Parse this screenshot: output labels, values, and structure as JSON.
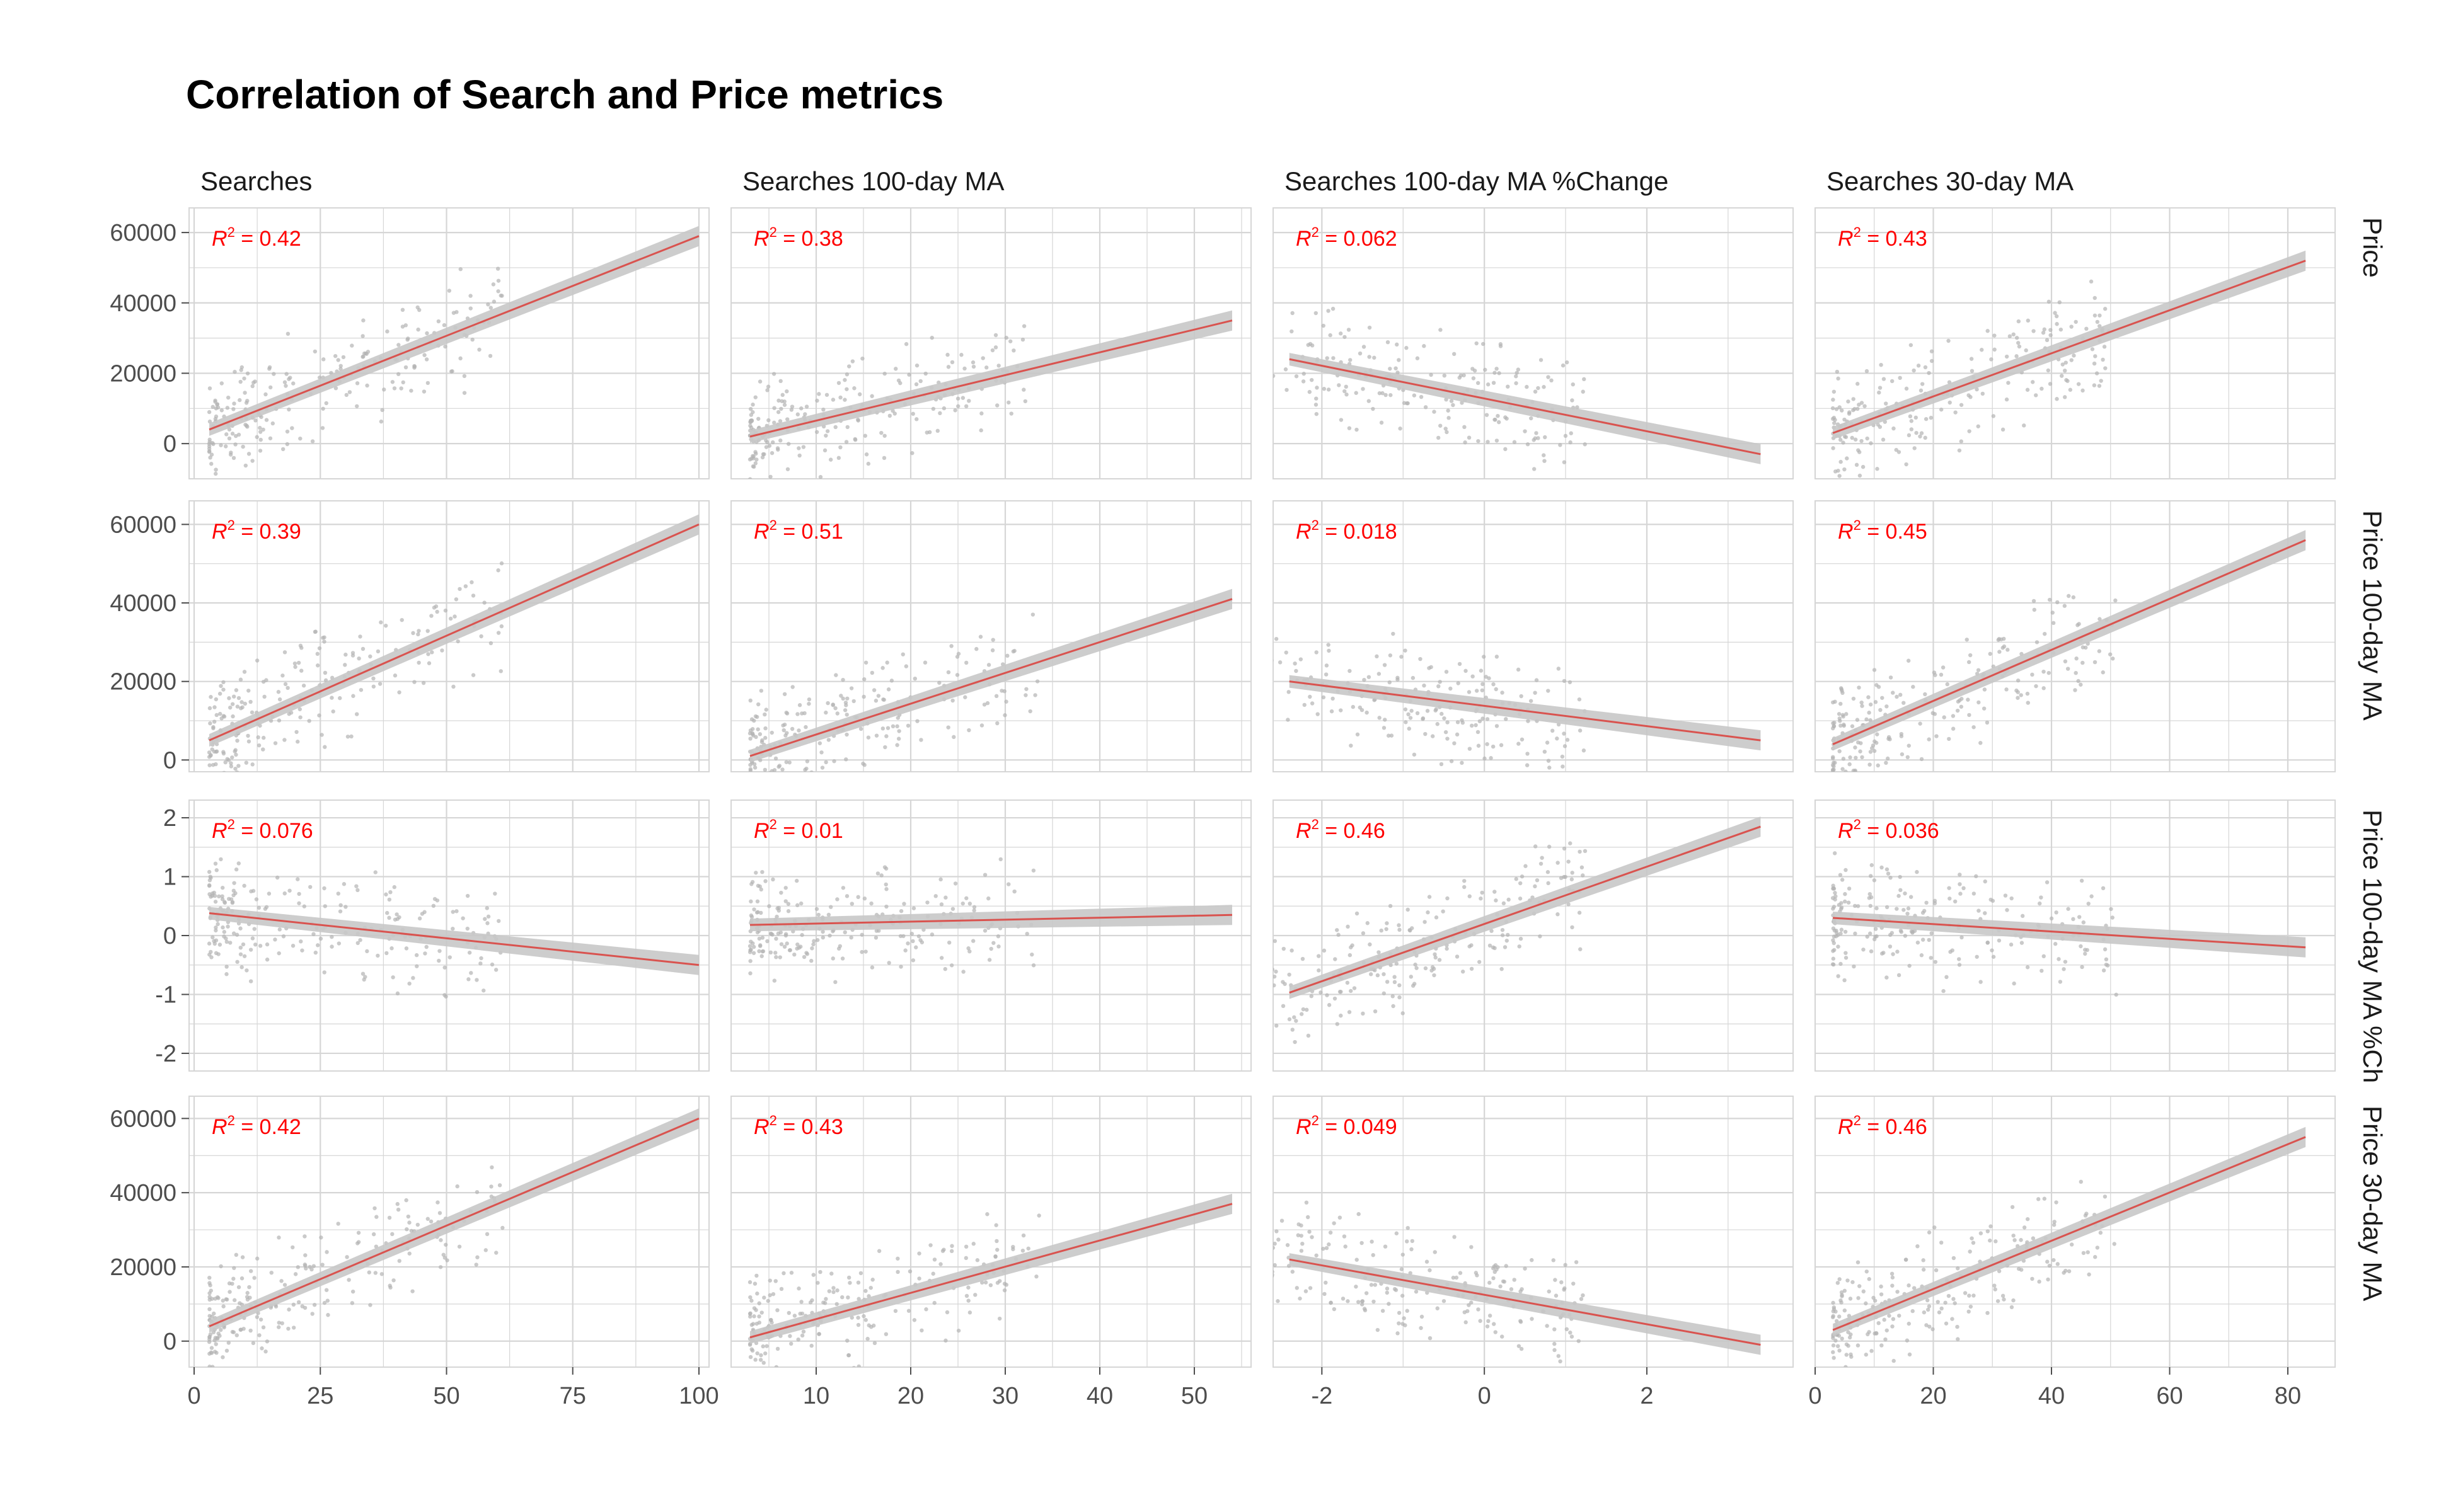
{
  "title": "Correlation of Search and Price metrics",
  "colors": {
    "trend": "#d9534f",
    "ribbon": "#c8c8c8",
    "points": "#b3b3b3",
    "grid": "#d6d6d6",
    "r2": "#ff0000"
  },
  "chart_data": {
    "type": "scatter",
    "facet_type": "grid",
    "columns": [
      {
        "label": "Searches",
        "xlim": [
          -1,
          102
        ],
        "ticks": [
          0,
          25,
          50,
          75,
          100
        ],
        "tick_labels": [
          "0",
          "25",
          "50",
          "75",
          "100"
        ]
      },
      {
        "label": "Searches 100-day MA",
        "xlim": [
          1,
          56
        ],
        "ticks": [
          10,
          20,
          30,
          40,
          50
        ],
        "tick_labels": [
          "10",
          "20",
          "30",
          "40",
          "50"
        ]
      },
      {
        "label": "Searches 100-day MA %Change",
        "xlim": [
          -2.6,
          3.8
        ],
        "ticks": [
          -2,
          0,
          2
        ],
        "tick_labels": [
          "-2",
          "0",
          "2"
        ]
      },
      {
        "label": "Searches 30-day MA",
        "xlim": [
          0,
          88
        ],
        "ticks": [
          0,
          20,
          40,
          60,
          80
        ],
        "tick_labels": [
          "0",
          "20",
          "40",
          "60",
          "80"
        ]
      }
    ],
    "rows": [
      {
        "label": "Price",
        "ylim": [
          -10000,
          67000
        ],
        "ticks": [
          0,
          20000,
          40000,
          60000
        ],
        "tick_labels": [
          "0",
          "20000",
          "40000",
          "60000"
        ]
      },
      {
        "label": "Price 100-day MA",
        "ylim": [
          -3000,
          66000
        ],
        "ticks": [
          0,
          20000,
          40000,
          60000
        ],
        "tick_labels": [
          "0",
          "20000",
          "40000",
          "60000"
        ]
      },
      {
        "label": "Price 100-day MA %Ch",
        "ylim": [
          -2.3,
          2.3
        ],
        "ticks": [
          -2,
          -1,
          0,
          1,
          2
        ],
        "tick_labels": [
          "-2",
          "-1",
          "0",
          "1",
          "2"
        ]
      },
      {
        "label": "Price 30-day MA",
        "ylim": [
          -7000,
          66000
        ],
        "ticks": [
          0,
          20000,
          40000,
          60000
        ],
        "tick_labels": [
          "0",
          "20000",
          "40000",
          "60000"
        ]
      }
    ],
    "panels": [
      [
        {
          "r2": "0.42",
          "fit": [
            [
              3,
              4000
            ],
            [
              100,
              59000
            ]
          ]
        },
        {
          "r2": "0.38",
          "fit": [
            [
              3,
              2000
            ],
            [
              54,
              35000
            ]
          ]
        },
        {
          "r2": "0.062",
          "fit": [
            [
              -2.4,
              24000
            ],
            [
              3.4,
              -3000
            ]
          ]
        },
        {
          "r2": "0.43",
          "fit": [
            [
              3,
              3000
            ],
            [
              83,
              52000
            ]
          ]
        }
      ],
      [
        {
          "r2": "0.39",
          "fit": [
            [
              3,
              5000
            ],
            [
              100,
              60000
            ]
          ]
        },
        {
          "r2": "0.51",
          "fit": [
            [
              3,
              1000
            ],
            [
              54,
              41000
            ]
          ]
        },
        {
          "r2": "0.018",
          "fit": [
            [
              -2.4,
              20000
            ],
            [
              3.4,
              5000
            ]
          ]
        },
        {
          "r2": "0.45",
          "fit": [
            [
              3,
              4000
            ],
            [
              83,
              56000
            ]
          ]
        }
      ],
      [
        {
          "r2": "0.076",
          "fit": [
            [
              3,
              0.38
            ],
            [
              100,
              -0.5
            ]
          ]
        },
        {
          "r2": "0.01",
          "fit": [
            [
              3,
              0.18
            ],
            [
              54,
              0.35
            ]
          ]
        },
        {
          "r2": "0.46",
          "fit": [
            [
              -2.4,
              -0.97
            ],
            [
              3.4,
              1.85
            ]
          ]
        },
        {
          "r2": "0.036",
          "fit": [
            [
              3,
              0.3
            ],
            [
              83,
              -0.2
            ]
          ]
        }
      ],
      [
        {
          "r2": "0.42",
          "fit": [
            [
              3,
              4000
            ],
            [
              100,
              60000
            ]
          ]
        },
        {
          "r2": "0.43",
          "fit": [
            [
              3,
              1000
            ],
            [
              54,
              37000
            ]
          ]
        },
        {
          "r2": "0.049",
          "fit": [
            [
              -2.4,
              22000
            ],
            [
              3.4,
              -1000
            ]
          ]
        },
        {
          "r2": "0.46",
          "fit": [
            [
              3,
              3000
            ],
            [
              83,
              55000
            ]
          ]
        }
      ]
    ]
  }
}
